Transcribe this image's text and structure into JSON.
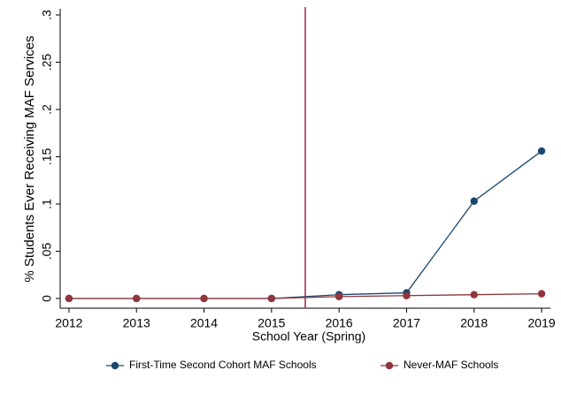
{
  "chart_data": {
    "type": "line",
    "x_label": "School Year (Spring)",
    "y_label": "% Students Ever Receiving MAF Services",
    "x": [
      2012,
      2013,
      2014,
      2015,
      2016,
      2017,
      2018,
      2019
    ],
    "series": [
      {
        "name": "First-Time Second Cohort MAF Schools",
        "color": "#1a476f",
        "values": [
          0,
          0,
          0,
          0,
          0.004,
          0.006,
          0.103,
          0.156
        ]
      },
      {
        "name": "Never-MAF Schools",
        "color": "#90353b",
        "values": [
          0,
          0,
          0,
          0,
          0.002,
          0.003,
          0.004,
          0.005
        ]
      }
    ],
    "xlim": [
      2011.87,
      2019.13
    ],
    "ylim": [
      -0.0103,
      0.3065
    ],
    "xticks": [
      2012,
      2013,
      2014,
      2015,
      2016,
      2017,
      2018,
      2019
    ],
    "yticks": [
      0,
      {
        "value": 0.05,
        "label": ".05"
      },
      {
        "value": 0.1,
        "label": ".1"
      },
      {
        "value": 0.15,
        "label": ".15"
      },
      {
        "value": 0.2,
        "label": ".2"
      },
      {
        "value": 0.25,
        "label": ".25"
      },
      {
        "value": 0.3,
        "label": ".3"
      }
    ],
    "reference_x": 2015.5,
    "reference_color": "#a0224b",
    "legend": "bottom",
    "grid": false
  }
}
